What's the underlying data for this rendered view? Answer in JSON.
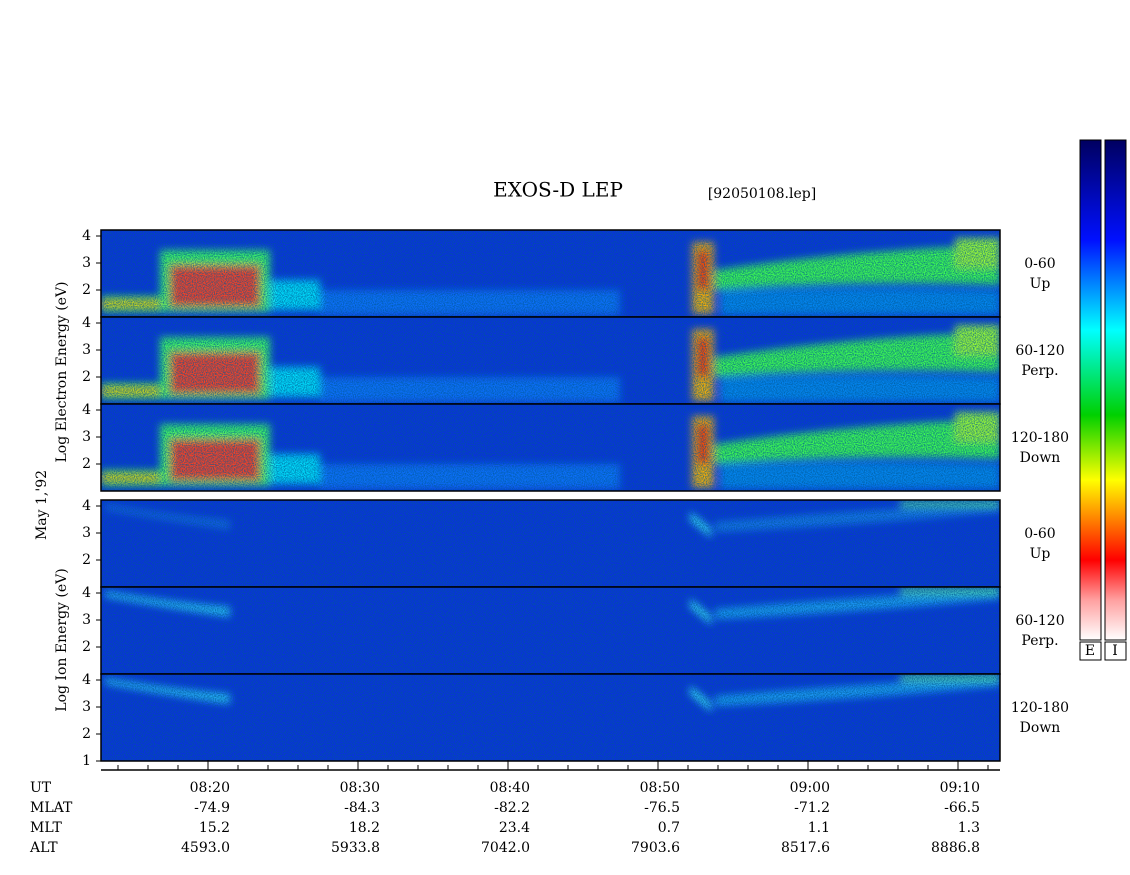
{
  "header": {
    "title": "EXOS-D LEP",
    "file": "[92050108.lep]"
  },
  "axis_labels": {
    "electron": "Log Electron Energy (eV)",
    "date": "May 1,'92",
    "ion": "Log Ion Energy (eV)"
  },
  "panels": [
    {
      "angle": "0-60",
      "direction": "Up",
      "ticks": [
        "2",
        "3",
        "4"
      ]
    },
    {
      "angle": "60-120",
      "direction": "Perp.",
      "ticks": [
        "2",
        "3",
        "4"
      ]
    },
    {
      "angle": "120-180",
      "direction": "Down",
      "ticks": [
        "2",
        "3",
        "4"
      ]
    },
    {
      "angle": "0-60",
      "direction": "Up",
      "ticks": [
        "2",
        "3",
        "4"
      ]
    },
    {
      "angle": "60-120",
      "direction": "Perp.",
      "ticks": [
        "2",
        "3",
        "4"
      ]
    },
    {
      "angle": "120-180",
      "direction": "Down",
      "ticks": [
        "1",
        "2",
        "3",
        "4"
      ]
    }
  ],
  "colorbar": {
    "labels": [
      "E",
      "I"
    ]
  },
  "time_table": {
    "row_labels": [
      "UT",
      "MLAT",
      "MLT",
      "ALT"
    ],
    "columns": [
      [
        "08:20",
        "-74.9",
        "15.2",
        "4593.0"
      ],
      [
        "08:30",
        "-84.3",
        "18.2",
        "5933.8"
      ],
      [
        "08:40",
        "-82.2",
        "23.4",
        "7042.0"
      ],
      [
        "08:50",
        "-76.5",
        "0.7",
        "7903.6"
      ],
      [
        "09:00",
        "-71.2",
        "1.1",
        "8517.6"
      ],
      [
        "09:10",
        "-66.5",
        "1.3",
        "8886.8"
      ]
    ]
  }
}
